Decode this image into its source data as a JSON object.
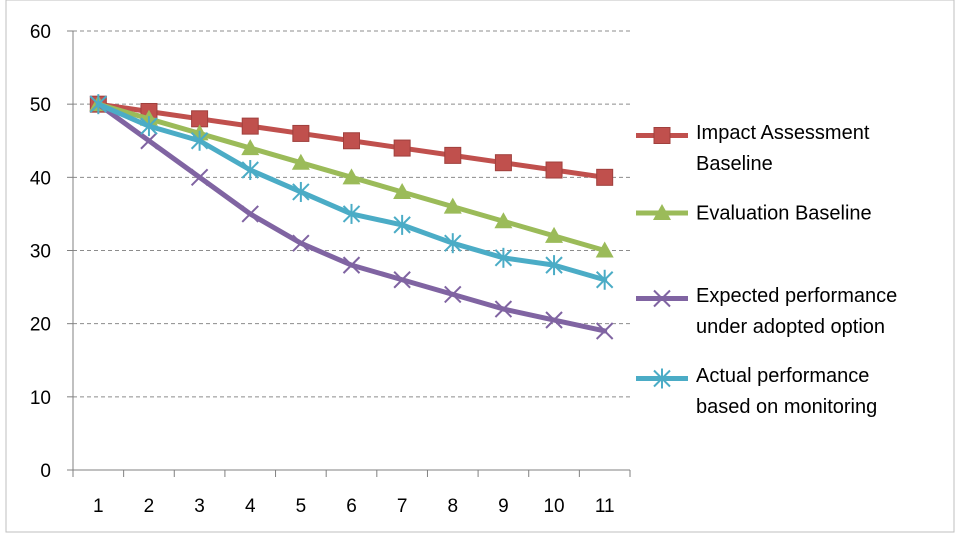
{
  "chart_data": {
    "type": "line",
    "title": "",
    "xlabel": "",
    "ylabel": "",
    "x": [
      1,
      2,
      3,
      4,
      5,
      6,
      7,
      8,
      9,
      10,
      11
    ],
    "x_tick_labels": [
      "1",
      "2",
      "3",
      "4",
      "5",
      "6",
      "7",
      "8",
      "9",
      "10",
      "11"
    ],
    "ylim": [
      0,
      60
    ],
    "y_ticks": [
      0,
      10,
      20,
      30,
      40,
      50,
      60
    ],
    "y_tick_labels": [
      "0",
      "10",
      "20",
      "30",
      "40",
      "50",
      "60"
    ],
    "grid": "horizontal dashed",
    "legend_position": "right",
    "series": [
      {
        "name": "Impact Assessment Baseline",
        "legend_lines": [
          "Impact Assessment",
          "Baseline"
        ],
        "color": "#c0504d",
        "marker": "square",
        "values": [
          50,
          49,
          48,
          47,
          46,
          45,
          44,
          43,
          42,
          41,
          40
        ]
      },
      {
        "name": "Evaluation Baseline",
        "legend_lines": [
          "Evaluation Baseline"
        ],
        "color": "#9bbb59",
        "marker": "triangle",
        "values": [
          50,
          48,
          46,
          44,
          42,
          40,
          38,
          36,
          34,
          32,
          30
        ]
      },
      {
        "name": "Expected performance under adopted option",
        "legend_lines": [
          "Expected performance",
          "under adopted option"
        ],
        "color": "#8064a2",
        "marker": "x",
        "values": [
          50,
          45,
          40,
          35,
          31,
          28,
          26,
          24,
          22,
          20.5,
          19
        ]
      },
      {
        "name": "Actual performance based on monitoring",
        "legend_lines": [
          "Actual performance",
          "based on monitoring"
        ],
        "color": "#4bacc6",
        "marker": "star",
        "values": [
          50,
          47,
          45,
          41,
          38,
          35,
          33.5,
          31,
          29,
          28,
          26
        ]
      }
    ]
  }
}
